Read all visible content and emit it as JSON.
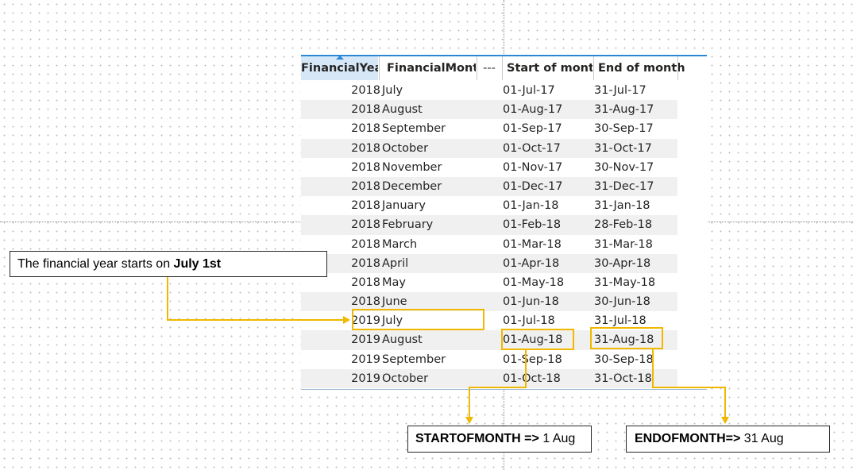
{
  "table": {
    "headers": {
      "financial_year": "FinancialYear",
      "financial_month": "FinancialMonth",
      "hidden_columns": "---",
      "start_of_month": "Start of month",
      "end_of_month": "End of month"
    },
    "rows": [
      {
        "year": "2018",
        "month": "July",
        "start": "01-Jul-17",
        "end": "31-Jul-17"
      },
      {
        "year": "2018",
        "month": "August",
        "start": "01-Aug-17",
        "end": "31-Aug-17"
      },
      {
        "year": "2018",
        "month": "September",
        "start": "01-Sep-17",
        "end": "30-Sep-17"
      },
      {
        "year": "2018",
        "month": "October",
        "start": "01-Oct-17",
        "end": "31-Oct-17"
      },
      {
        "year": "2018",
        "month": "November",
        "start": "01-Nov-17",
        "end": "30-Nov-17"
      },
      {
        "year": "2018",
        "month": "December",
        "start": "01-Dec-17",
        "end": "31-Dec-17"
      },
      {
        "year": "2018",
        "month": "January",
        "start": "01-Jan-18",
        "end": "31-Jan-18"
      },
      {
        "year": "2018",
        "month": "February",
        "start": "01-Feb-18",
        "end": "28-Feb-18"
      },
      {
        "year": "2018",
        "month": "March",
        "start": "01-Mar-18",
        "end": "31-Mar-18"
      },
      {
        "year": "2018",
        "month": "April",
        "start": "01-Apr-18",
        "end": "30-Apr-18"
      },
      {
        "year": "2018",
        "month": "May",
        "start": "01-May-18",
        "end": "31-May-18"
      },
      {
        "year": "2018",
        "month": "June",
        "start": "01-Jun-18",
        "end": "30-Jun-18"
      },
      {
        "year": "2019",
        "month": "July",
        "start": "01-Jul-18",
        "end": "31-Jul-18"
      },
      {
        "year": "2019",
        "month": "August",
        "start": "01-Aug-18",
        "end": "31-Aug-18"
      },
      {
        "year": "2019",
        "month": "September",
        "start": "01-Sep-18",
        "end": "30-Sep-18"
      },
      {
        "year": "2019",
        "month": "October",
        "start": "01-Oct-18",
        "end": "31-Oct-18"
      }
    ]
  },
  "callouts": {
    "financial_year": {
      "text": "The financial year starts on ",
      "bold": "July 1st"
    },
    "start_of_month": {
      "bold": "STARTOFMONTH => ",
      "text": "1 Aug"
    },
    "end_of_month": {
      "bold": "ENDOFMONTH=> ",
      "text": "31 Aug"
    }
  },
  "colors": {
    "highlight": "#f0b800",
    "header_accent": "#2b88d8",
    "sorted_header_bg": "#d6e8f8",
    "row_stripe": "#f0f0f0"
  }
}
